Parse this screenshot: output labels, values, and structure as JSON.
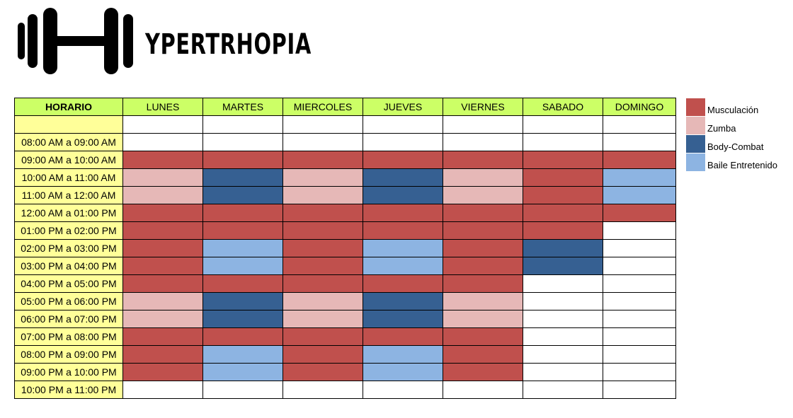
{
  "logo": {
    "text": "YPERTRHOPIA",
    "icon": "dumbbell-icon"
  },
  "schedule": {
    "header": [
      "HORARIO",
      "LUNES",
      "MARTES",
      "MIERCOLES",
      "JUEVES",
      "VIERNES",
      "SABADO",
      "DOMINGO"
    ],
    "rows": [
      {
        "time": "",
        "slots": [
          "",
          "",
          "",
          "",
          "",
          "",
          ""
        ]
      },
      {
        "time": "08:00 AM a 09:00 AM",
        "slots": [
          "",
          "",
          "",
          "",
          "",
          "",
          ""
        ]
      },
      {
        "time": "09:00 AM a 10:00 AM",
        "slots": [
          "M",
          "M",
          "M",
          "M",
          "M",
          "M",
          "M"
        ]
      },
      {
        "time": "10:00 AM a 11:00 AM",
        "slots": [
          "Z",
          "B",
          "Z",
          "B",
          "Z",
          "M",
          "E"
        ]
      },
      {
        "time": "11:00 AM a 12:00 AM",
        "slots": [
          "Z",
          "B",
          "Z",
          "B",
          "Z",
          "M",
          "E"
        ]
      },
      {
        "time": "12:00 AM a 01:00 PM",
        "slots": [
          "M",
          "M",
          "M",
          "M",
          "M",
          "M",
          "M"
        ]
      },
      {
        "time": "01:00 PM a 02:00 PM",
        "slots": [
          "M",
          "M",
          "M",
          "M",
          "M",
          "M",
          ""
        ]
      },
      {
        "time": "02:00 PM a 03:00 PM",
        "slots": [
          "M",
          "E",
          "M",
          "E",
          "M",
          "B",
          ""
        ]
      },
      {
        "time": "03:00 PM a 04:00 PM",
        "slots": [
          "M",
          "E",
          "M",
          "E",
          "M",
          "B",
          ""
        ]
      },
      {
        "time": "04:00 PM a 05:00 PM",
        "slots": [
          "M",
          "M",
          "M",
          "M",
          "M",
          "",
          ""
        ]
      },
      {
        "time": "05:00 PM a 06:00 PM",
        "slots": [
          "Z",
          "B",
          "Z",
          "B",
          "Z",
          "",
          ""
        ]
      },
      {
        "time": "06:00 PM a 07:00 PM",
        "slots": [
          "Z",
          "B",
          "Z",
          "B",
          "Z",
          "",
          ""
        ]
      },
      {
        "time": "07:00 PM a 08:00 PM",
        "slots": [
          "M",
          "M",
          "M",
          "M",
          "M",
          "",
          ""
        ]
      },
      {
        "time": "08:00 PM a 09:00 PM",
        "slots": [
          "M",
          "E",
          "M",
          "E",
          "M",
          "",
          ""
        ]
      },
      {
        "time": "09:00 PM a 10:00 PM",
        "slots": [
          "M",
          "E",
          "M",
          "E",
          "M",
          "",
          ""
        ]
      },
      {
        "time": "10:00 PM a 11:00 PM",
        "slots": [
          "",
          "",
          "",
          "",
          "",
          "",
          ""
        ]
      }
    ]
  },
  "legend": [
    {
      "code": "M",
      "label": "Musculación",
      "color": "#c0504d"
    },
    {
      "code": "Z",
      "label": "Zumba",
      "color": "#e6b8b7"
    },
    {
      "code": "B",
      "label": "Body-Combat",
      "color": "#366092"
    },
    {
      "code": "E",
      "label": "Baile Entretenido",
      "color": "#8db4e2"
    }
  ],
  "colors": {
    "header_bg": "#ccff66",
    "time_bg": "#ffff99",
    "empty_bg": "#ffffff"
  }
}
